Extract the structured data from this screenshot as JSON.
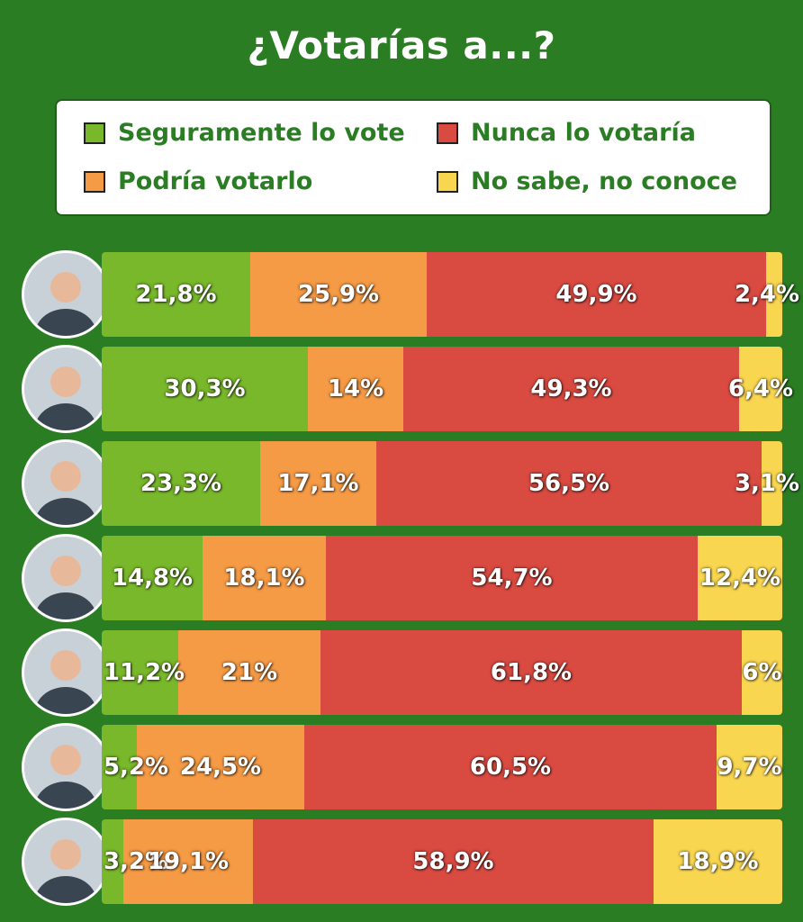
{
  "title": "¿Votarías a...?",
  "colors": {
    "seguro": "#78b82a",
    "podria": "#f59a45",
    "nunca": "#d94a41",
    "nosabe": "#f9d650"
  },
  "legend": [
    {
      "key": "seguro",
      "label": "Seguramente lo vote",
      "name": "legend-item-seguramente"
    },
    {
      "key": "nunca",
      "label": "Nunca lo votaría",
      "name": "legend-item-nunca"
    },
    {
      "key": "podria",
      "label": "Podría votarlo",
      "name": "legend-item-podria"
    },
    {
      "key": "nosabe",
      "label": "No sabe, no conoce",
      "name": "legend-item-no-sabe"
    }
  ],
  "chart_data": {
    "type": "bar",
    "orientation": "horizontal",
    "stacked": true,
    "title": "¿Votarías a...?",
    "categories": [
      "",
      "",
      "",
      "",
      "",
      "",
      ""
    ],
    "series": [
      {
        "name": "Seguramente lo vote",
        "key": "seguro",
        "values": [
          21.8,
          30.3,
          23.3,
          14.8,
          11.2,
          5.2,
          3.2
        ],
        "labels": [
          "21,8%",
          "30,3%",
          "23,3%",
          "14,8%",
          "11,2%",
          "5,2%",
          "3,2%"
        ]
      },
      {
        "name": "Podría votarlo",
        "key": "podria",
        "values": [
          25.9,
          14,
          17.1,
          18.1,
          21,
          24.5,
          19.1
        ],
        "labels": [
          "25,9%",
          "14%",
          "17,1%",
          "18,1%",
          "21%",
          "24,5%",
          "19,1%"
        ]
      },
      {
        "name": "Nunca lo votaría",
        "key": "nunca",
        "values": [
          49.9,
          49.3,
          56.5,
          54.7,
          61.8,
          60.5,
          58.9
        ],
        "labels": [
          "49,9%",
          "49,3%",
          "56,5%",
          "54,7%",
          "61,8%",
          "60,5%",
          "58,9%"
        ]
      },
      {
        "name": "No sabe, no conoce",
        "key": "nosabe",
        "values": [
          2.4,
          6.4,
          3.1,
          12.4,
          6,
          9.7,
          18.9
        ],
        "labels": [
          "2,4%",
          "6,4%",
          "3,1%",
          "12,4%",
          "6%",
          "9,7%",
          "18,9%"
        ]
      }
    ],
    "xlim": [
      0,
      100
    ],
    "legend_position": "top",
    "grid": false
  }
}
